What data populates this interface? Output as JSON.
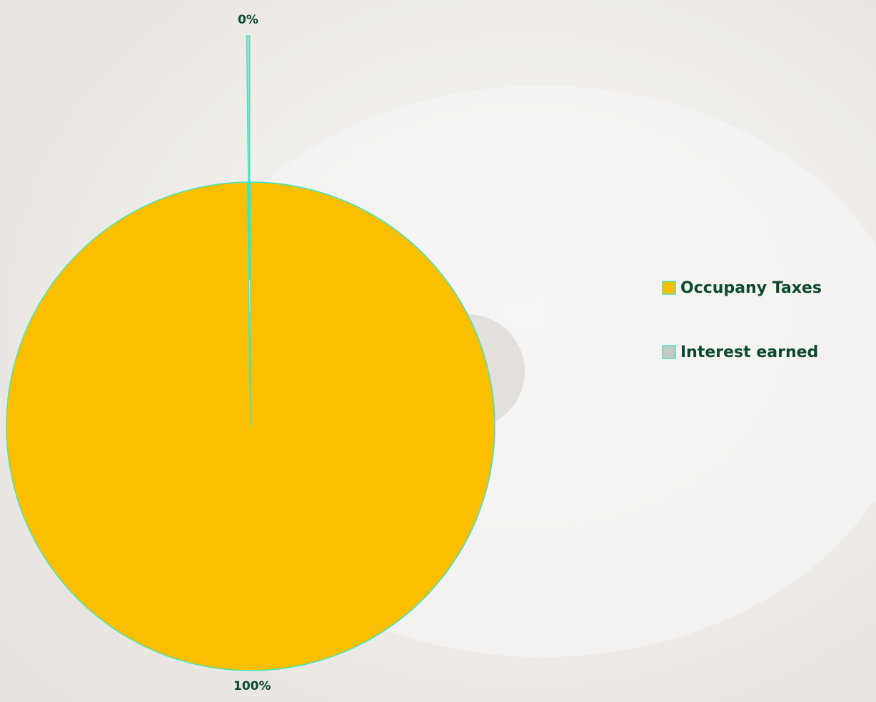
{
  "chart_data": {
    "type": "pie",
    "categories": [
      "Occupany Taxes",
      "Interest earned"
    ],
    "values": [
      99.8,
      0.2
    ],
    "value_labels": [
      "100%",
      "0%"
    ],
    "colors": [
      "#fbbf00",
      "#c9c9c1"
    ],
    "edge_color": "#3ee6c0",
    "legend": "right"
  }
}
